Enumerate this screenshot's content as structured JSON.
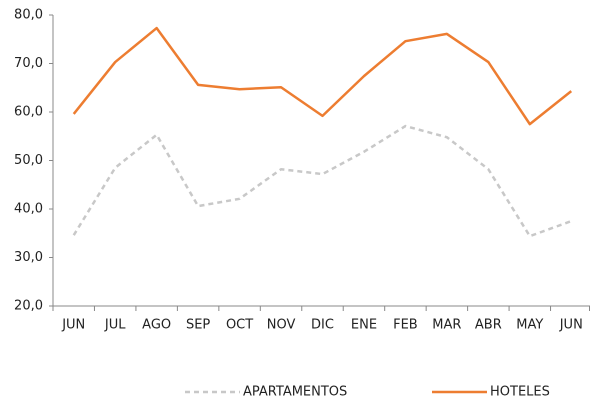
{
  "chart_data": {
    "type": "line",
    "categories": [
      "JUN",
      "JUL",
      "AGO",
      "SEP",
      "OCT",
      "NOV",
      "DIC",
      "ENE",
      "FEB",
      "MAR",
      "ABR",
      "MAY",
      "JUN"
    ],
    "series": [
      {
        "name": "APARTAMENTOS",
        "color": "#c8c8c8",
        "dashed": true,
        "values": [
          34.6,
          48.5,
          55.3,
          40.6,
          42.1,
          48.2,
          47.2,
          51.8,
          57.1,
          54.8,
          48.2,
          34.4,
          37.5
        ]
      },
      {
        "name": "HOTELES",
        "color": "#ed7d31",
        "values": [
          59.6,
          70.3,
          77.3,
          65.6,
          64.7,
          65.1,
          59.2,
          67.4,
          74.6,
          76.1,
          70.3,
          57.5,
          64.3
        ]
      }
    ],
    "ylim": [
      20,
      80
    ],
    "yticks": [
      {
        "value": 20,
        "label": "20,0"
      },
      {
        "value": 30,
        "label": "30,0"
      },
      {
        "value": 40,
        "label": "40,0"
      },
      {
        "value": 50,
        "label": "50,0"
      },
      {
        "value": 60,
        "label": "60,0"
      },
      {
        "value": 70,
        "label": "70,0"
      },
      {
        "value": 80,
        "label": "80,0"
      }
    ],
    "legend": "bottom"
  }
}
